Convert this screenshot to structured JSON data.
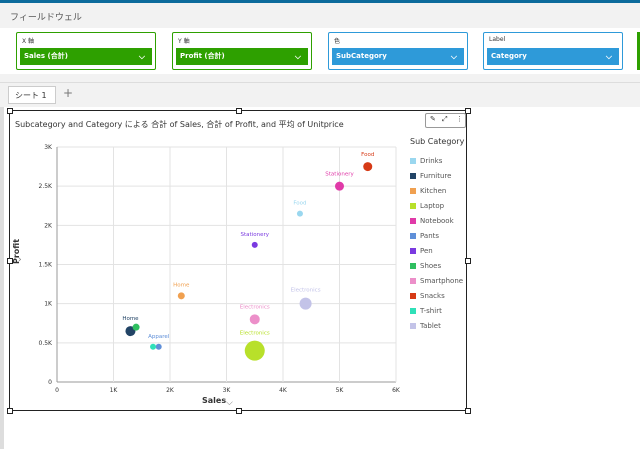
{
  "fieldwell": {
    "title": "フィールドウェル",
    "wells": [
      {
        "label": "X 軸",
        "value": "Sales (合計)",
        "color": "#2ea000"
      },
      {
        "label": "Y 軸",
        "value": "Profit (合計)",
        "color": "#2ea000"
      },
      {
        "label": "色",
        "value": "SubCategory",
        "color": "#2e9ad9"
      },
      {
        "label": "Label",
        "value": "Category",
        "color": "#2e9ad9"
      }
    ]
  },
  "sheets": {
    "tabs": [
      {
        "label": "シート 1 ⌄"
      }
    ],
    "add": "+"
  },
  "visual": {
    "title": "Subcategory and Category による 合計 of Sales, 合計 of Profit, and 平均 of Unitprice",
    "toolbar": {
      "edit": "✎",
      "expand": "⤢",
      "more": "⋮"
    }
  },
  "chart_data": {
    "type": "scatter",
    "title": "Subcategory and Category による 合計 of Sales, 合計 of Profit, and 平均 of Unitprice",
    "xlabel": "Sales",
    "ylabel": "Profit",
    "xlim": [
      0,
      6000
    ],
    "ylim": [
      0,
      3000
    ],
    "xticks": [
      "0",
      "1K",
      "2K",
      "3K",
      "4K",
      "5K",
      "6K"
    ],
    "yticks": [
      "0",
      "0.5K",
      "1K",
      "1.5K",
      "2K",
      "2.5K",
      "3K"
    ],
    "grid": true,
    "legend_title": "Sub Category",
    "legend_position": "right",
    "series": [
      {
        "name": "Drinks",
        "color": "#9ad7ef",
        "points": [
          {
            "x": 4300,
            "y": 2150,
            "size": 3,
            "label": "Food"
          }
        ]
      },
      {
        "name": "Furniture",
        "color": "#224466",
        "points": [
          {
            "x": 1300,
            "y": 650,
            "size": 5,
            "label": "Home"
          }
        ]
      },
      {
        "name": "Kitchen",
        "color": "#f0a050",
        "points": [
          {
            "x": 2200,
            "y": 1100,
            "size": 3.5,
            "label": "Home"
          }
        ]
      },
      {
        "name": "Laptop",
        "color": "#b8e02a",
        "points": [
          {
            "x": 3500,
            "y": 400,
            "size": 10,
            "label": "Electronics"
          }
        ]
      },
      {
        "name": "Notebook",
        "color": "#e03aa8",
        "points": [
          {
            "x": 5000,
            "y": 2500,
            "size": 4.5,
            "label": "Stationery"
          }
        ]
      },
      {
        "name": "Pants",
        "color": "#5f8fd8",
        "points": [
          {
            "x": 1800,
            "y": 450,
            "size": 3,
            "label": "Apparel"
          }
        ]
      },
      {
        "name": "Pen",
        "color": "#7a3ae0",
        "points": [
          {
            "x": 3500,
            "y": 1750,
            "size": 3,
            "label": "Stationery"
          }
        ]
      },
      {
        "name": "Shoes",
        "color": "#2fbf60",
        "points": [
          {
            "x": 1400,
            "y": 700,
            "size": 3.5,
            "label": ""
          }
        ]
      },
      {
        "name": "Smartphone",
        "color": "#ec8fc9",
        "points": [
          {
            "x": 3500,
            "y": 800,
            "size": 5,
            "label": "Electronics"
          }
        ]
      },
      {
        "name": "Snacks",
        "color": "#d63a16",
        "points": [
          {
            "x": 5500,
            "y": 2750,
            "size": 4.5,
            "label": "Food"
          }
        ]
      },
      {
        "name": "T-shirt",
        "color": "#2fe0b8",
        "points": [
          {
            "x": 1700,
            "y": 450,
            "size": 3,
            "label": ""
          }
        ]
      },
      {
        "name": "Tablet",
        "color": "#c3c3e8",
        "points": [
          {
            "x": 4400,
            "y": 1000,
            "size": 6,
            "label": "Electronics"
          }
        ]
      }
    ]
  }
}
